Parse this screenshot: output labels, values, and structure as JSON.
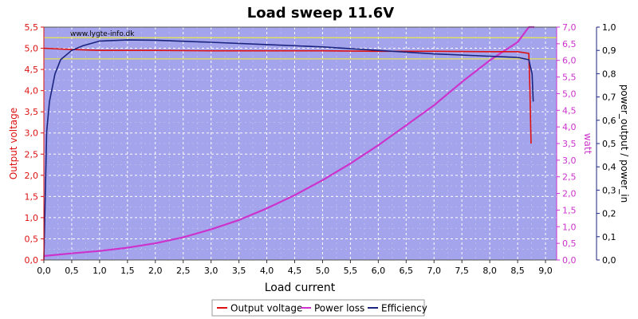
{
  "chart_data": {
    "type": "line",
    "title": "Load sweep 11.6V",
    "watermark": "www.lygte-info.dk",
    "xlabel": "Load current",
    "ylabel_left": "Output voltage",
    "ylabel_right1": "watt",
    "ylabel_right2": "power_output / power_in",
    "xlim": [
      0,
      9.2
    ],
    "ylim_left": [
      0,
      5.5
    ],
    "ylim_right1": [
      0,
      7.0
    ],
    "ylim_right2": [
      0,
      1.0
    ],
    "x_ticks": [
      "0,0",
      "0,5",
      "1,0",
      "1,5",
      "2,0",
      "2,5",
      "3,0",
      "3,5",
      "4,0",
      "4,5",
      "5,0",
      "5,5",
      "6,0",
      "6,5",
      "7,0",
      "7,5",
      "8,0",
      "8,5",
      "9,0"
    ],
    "y_left_ticks": [
      "0,0",
      "0,5",
      "1,0",
      "1,5",
      "2,0",
      "2,5",
      "3,0",
      "3,5",
      "4,0",
      "4,5",
      "5,0",
      "5,5"
    ],
    "y_right1_ticks": [
      "0,0",
      "0,5",
      "1,0",
      "1,5",
      "2,0",
      "2,5",
      "3,0",
      "3,5",
      "4,0",
      "4,5",
      "5,0",
      "5,5",
      "6,0",
      "6,5",
      "7,0"
    ],
    "y_right2_ticks": [
      "0,0",
      "0,1",
      "0,2",
      "0,3",
      "0,4",
      "0,5",
      "0,6",
      "0,7",
      "0,8",
      "0,9",
      "1,0"
    ],
    "reference_lines": [
      5.25,
      4.75
    ],
    "grid": true,
    "legend_position": "bottom-center",
    "colors": {
      "plot_bg": "#a4a4ec",
      "voltage": "#dd1111",
      "power_loss": "#cc33cc",
      "efficiency": "#1a237e",
      "ref_line": "#e8e84a",
      "left_axis": "#dd1111",
      "right1_axis": "#cc33cc",
      "right2_axis": "#1a237e"
    },
    "series": [
      {
        "name": "Output voltage",
        "axis": "left",
        "x": [
          0.0,
          0.5,
          1.0,
          2.0,
          3.0,
          4.0,
          5.0,
          6.0,
          7.0,
          8.0,
          8.5,
          8.7,
          8.72,
          8.74
        ],
        "y": [
          5.0,
          4.97,
          4.95,
          4.95,
          4.94,
          4.94,
          4.94,
          4.93,
          4.93,
          4.92,
          4.92,
          4.88,
          4.0,
          2.75
        ]
      },
      {
        "name": "Power loss",
        "axis": "right1",
        "x": [
          0.0,
          0.5,
          1.0,
          1.5,
          2.0,
          2.5,
          3.0,
          3.5,
          4.0,
          4.5,
          5.0,
          5.5,
          6.0,
          6.5,
          7.0,
          7.5,
          8.0,
          8.5,
          8.7,
          8.8
        ],
        "y": [
          0.12,
          0.2,
          0.27,
          0.37,
          0.5,
          0.68,
          0.92,
          1.2,
          1.55,
          1.95,
          2.4,
          2.9,
          3.45,
          4.05,
          4.65,
          5.35,
          6.0,
          6.55,
          7.0,
          7.0
        ]
      },
      {
        "name": "Efficiency",
        "axis": "right2",
        "x": [
          0.0,
          0.05,
          0.1,
          0.2,
          0.3,
          0.5,
          0.7,
          1.0,
          1.5,
          2.0,
          3.0,
          4.0,
          5.0,
          6.0,
          7.0,
          8.0,
          8.5,
          8.7,
          8.76,
          8.78
        ],
        "y": [
          0.0,
          0.55,
          0.68,
          0.8,
          0.86,
          0.9,
          0.92,
          0.94,
          0.945,
          0.944,
          0.935,
          0.925,
          0.915,
          0.9,
          0.885,
          0.875,
          0.87,
          0.86,
          0.8,
          0.68
        ]
      }
    ]
  }
}
